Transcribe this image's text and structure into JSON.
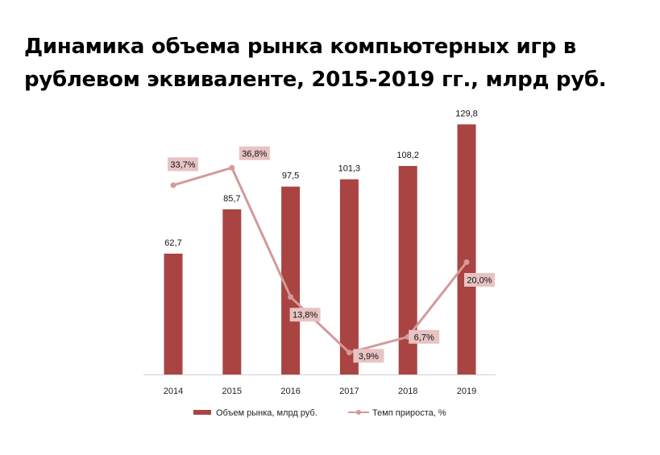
{
  "title": "Динамика объема рынка компьютерных игр в рублевом эквиваленте, 2015-2019 гг., млрд руб.",
  "colors": {
    "bar": "#a94442",
    "line": "#d4999a",
    "label_bg": "#e8c3c3",
    "axis": "#d0d0d0"
  },
  "chart_data": {
    "type": "bar",
    "title": "Динамика объема рынка компьютерных игр в рублевом эквиваленте, 2015-2019 гг., млрд руб.",
    "categories": [
      "2014",
      "2015",
      "2016",
      "2017",
      "2018",
      "2019"
    ],
    "series": [
      {
        "name": "Объем рынка, млрд руб.",
        "type": "bar",
        "values": [
          62.7,
          85.7,
          97.5,
          101.3,
          108.2,
          129.8
        ],
        "labels": [
          "62,7",
          "85,7",
          "97,5",
          "101,3",
          "108,2",
          "129,8"
        ]
      },
      {
        "name": "Темп прироста, %",
        "type": "line",
        "axis": "secondary",
        "values": [
          33.7,
          36.8,
          13.8,
          3.9,
          6.7,
          20.0
        ],
        "labels": [
          "33,7%",
          "36,8%",
          "13,8%",
          "3,9%",
          "6,7%",
          "20,0%"
        ]
      }
    ],
    "ylim": [
      0,
      140
    ],
    "y2lim": [
      0,
      40
    ],
    "grid": false,
    "legend": "bottom"
  }
}
